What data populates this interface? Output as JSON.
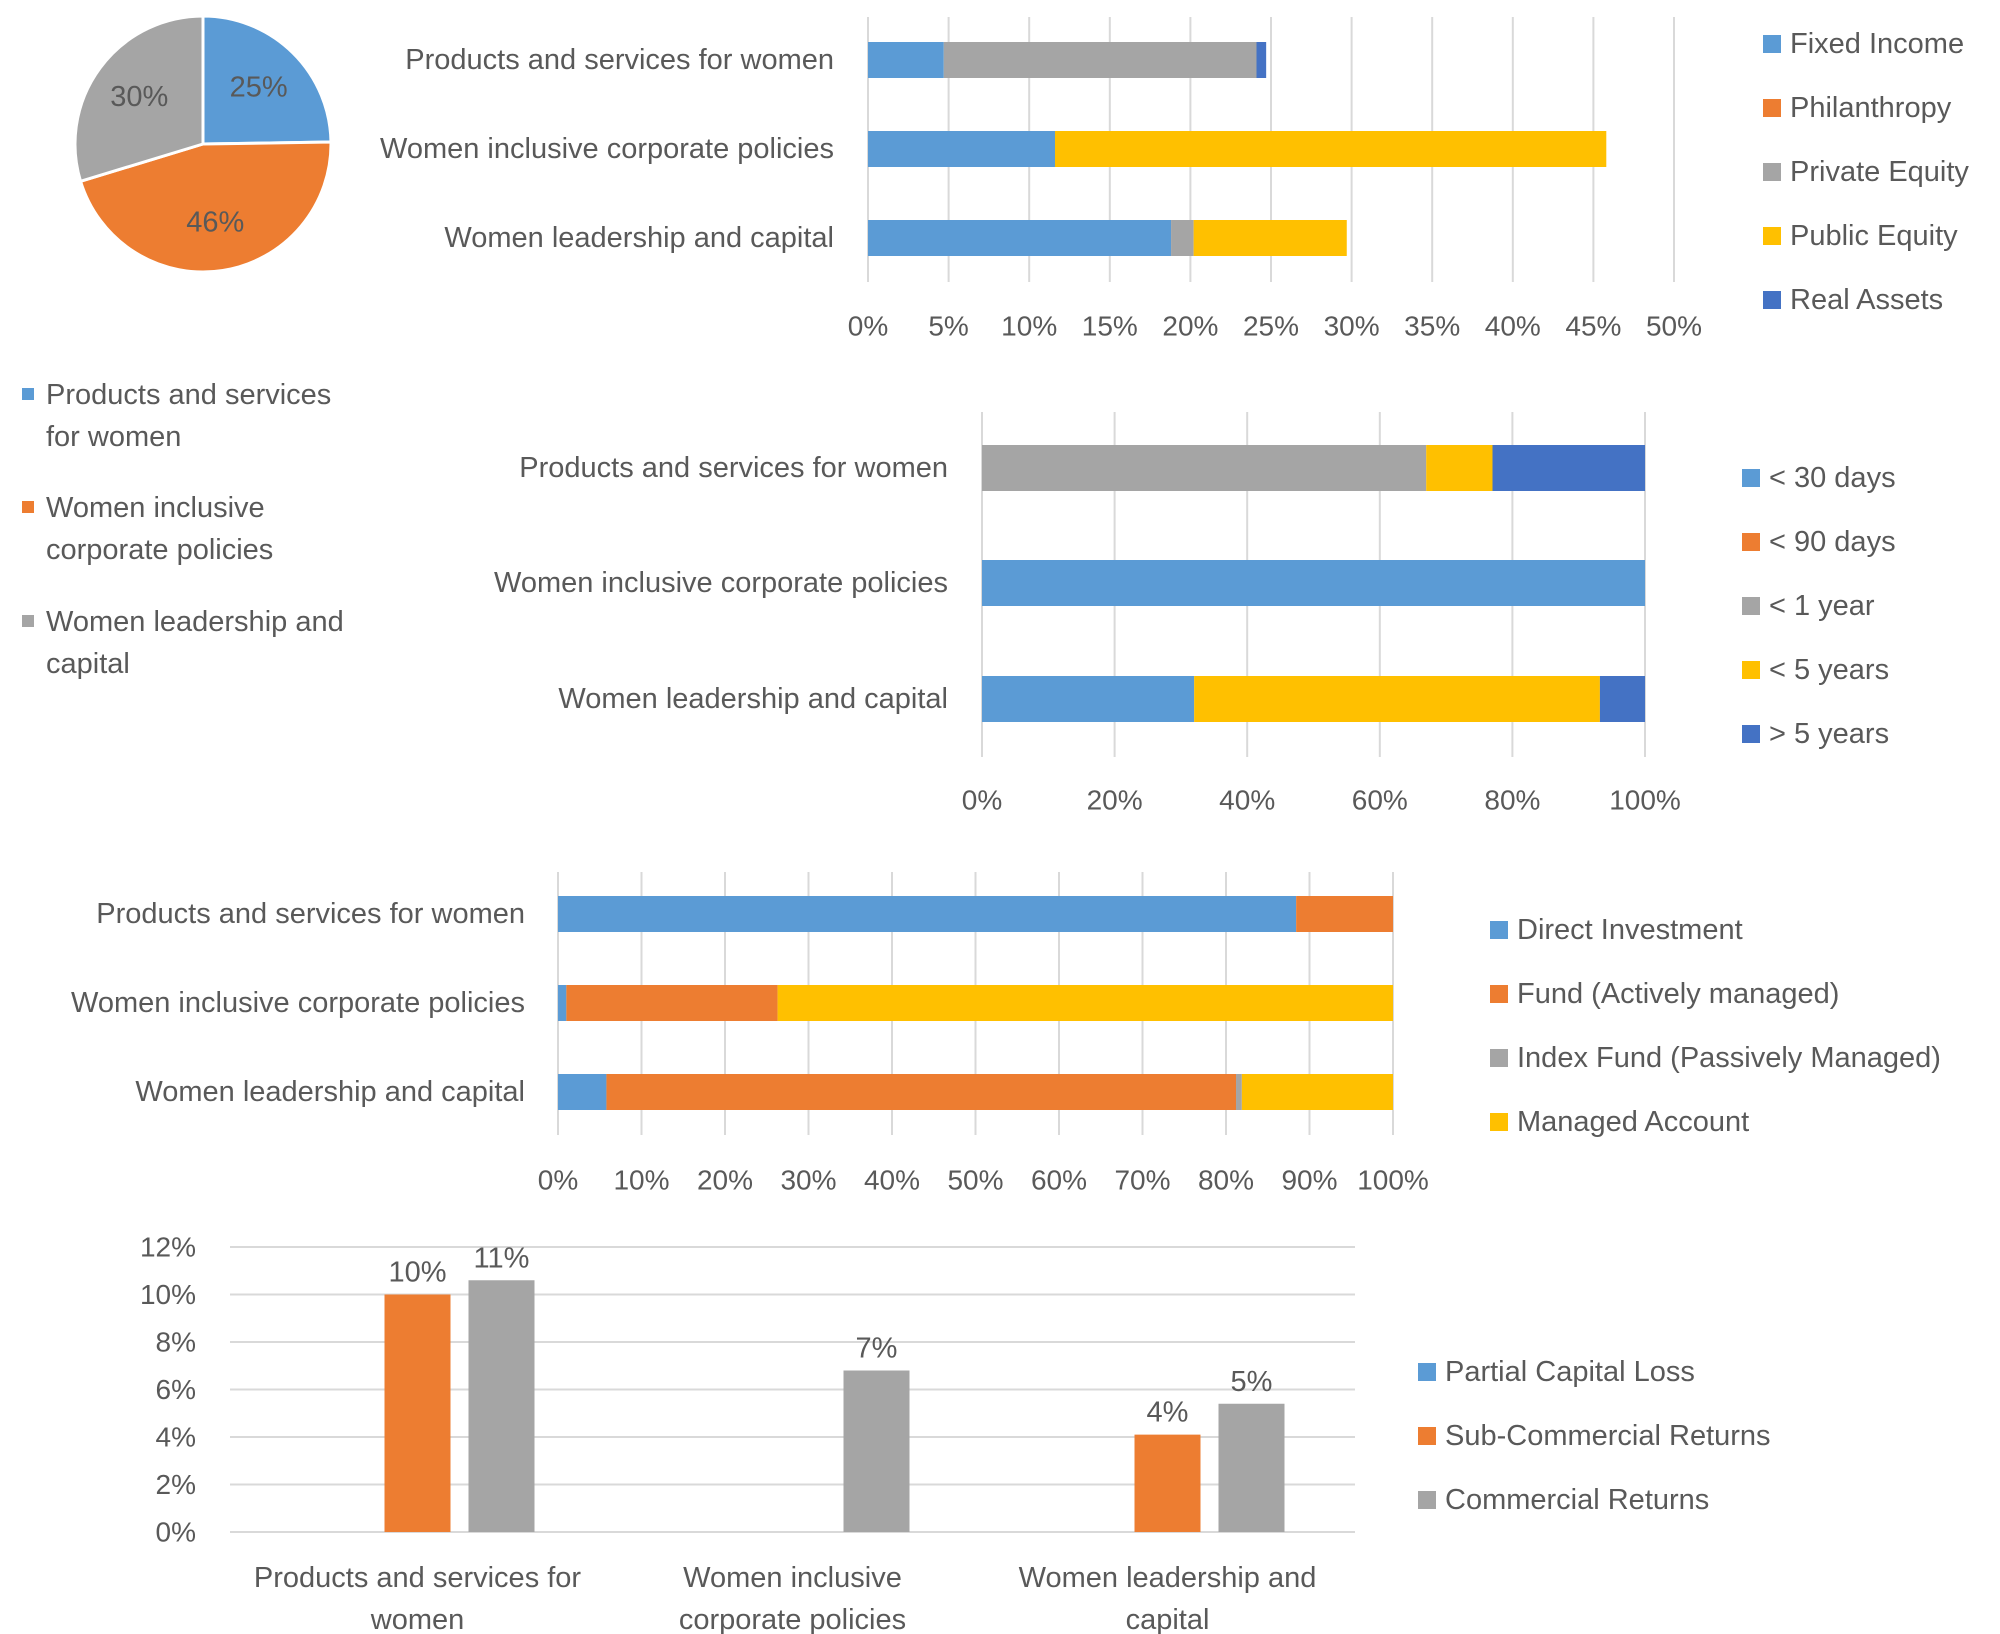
{
  "chart_data": [
    {
      "id": "allocation-pie",
      "type": "pie",
      "title": "",
      "slices": [
        {
          "label": "Products and services for women",
          "value": 25,
          "display": "25%",
          "color": "#5b9bd5"
        },
        {
          "label": "Women inclusive corporate policies",
          "value": 46,
          "display": "46%",
          "color": "#ed7d31"
        },
        {
          "label": "Women leadership and capital",
          "value": 30,
          "display": "30%",
          "color": "#a5a5a5"
        }
      ],
      "legend": [
        "Products and services for women",
        "Women inclusive corporate policies",
        "Women leadership and capital"
      ],
      "legend_position": "bottom-left"
    },
    {
      "id": "asset-class",
      "type": "bar",
      "orientation": "horizontal",
      "stacked": true,
      "categories": [
        "Products and services for women",
        "Women inclusive corporate policies",
        "Women leadership and capital"
      ],
      "series": [
        {
          "name": "Fixed Income",
          "color": "#5b9bd5",
          "values": [
            4.7,
            11.6,
            18.8
          ]
        },
        {
          "name": "Philanthropy",
          "color": "#ed7d31",
          "values": [
            0,
            0,
            0
          ]
        },
        {
          "name": "Private Equity",
          "color": "#a5a5a5",
          "values": [
            19.4,
            0,
            1.4
          ]
        },
        {
          "name": "Public Equity",
          "color": "#ffc000",
          "values": [
            0,
            34.2,
            9.5
          ]
        },
        {
          "name": "Real Assets",
          "color": "#4472c4",
          "values": [
            0.6,
            0,
            0
          ]
        }
      ],
      "xlim": [
        0,
        50
      ],
      "ticks": [
        "0%",
        "5%",
        "10%",
        "15%",
        "20%",
        "25%",
        "30%",
        "35%",
        "40%",
        "45%",
        "50%"
      ],
      "legend_position": "right"
    },
    {
      "id": "time-horizon",
      "type": "bar",
      "orientation": "horizontal",
      "stacked": true,
      "percent": true,
      "categories": [
        "Products and services for women",
        "Women inclusive corporate policies",
        "Women leadership and capital"
      ],
      "series": [
        {
          "name": "< 30 days",
          "color": "#5b9bd5",
          "values": [
            0,
            100,
            32
          ]
        },
        {
          "name": "< 90 days",
          "color": "#ed7d31",
          "values": [
            0,
            0,
            0
          ]
        },
        {
          "name": "< 1 year",
          "color": "#a5a5a5",
          "values": [
            67,
            0,
            0
          ]
        },
        {
          "name": "< 5 years",
          "color": "#ffc000",
          "values": [
            10,
            0,
            61.2
          ]
        },
        {
          "name": "> 5 years",
          "color": "#4472c4",
          "values": [
            23,
            0,
            6.8
          ]
        }
      ],
      "xlim": [
        0,
        100
      ],
      "ticks": [
        "0%",
        "20%",
        "40%",
        "60%",
        "80%",
        "100%"
      ],
      "legend_position": "right"
    },
    {
      "id": "vehicle",
      "type": "bar",
      "orientation": "horizontal",
      "stacked": true,
      "percent": true,
      "categories": [
        "Products and services for women",
        "Women inclusive corporate policies",
        "Women leadership and capital"
      ],
      "series": [
        {
          "name": "Direct Investment",
          "color": "#5b9bd5",
          "values": [
            88.4,
            1.0,
            5.8
          ]
        },
        {
          "name": "Fund (Actively managed)",
          "color": "#ed7d31",
          "values": [
            11.6,
            25.3,
            75.4
          ]
        },
        {
          "name": "Index Fund (Passively Managed)",
          "color": "#a5a5a5",
          "values": [
            0,
            0,
            0.7
          ]
        },
        {
          "name": "Managed Account",
          "color": "#ffc000",
          "values": [
            0,
            73.7,
            18.1
          ]
        }
      ],
      "xlim": [
        0,
        100
      ],
      "ticks": [
        "0%",
        "10%",
        "20%",
        "30%",
        "40%",
        "50%",
        "60%",
        "70%",
        "80%",
        "90%",
        "100%"
      ],
      "legend_position": "right"
    },
    {
      "id": "returns",
      "type": "bar",
      "orientation": "vertical",
      "stacked": false,
      "categories": [
        [
          "Products and services for",
          "women"
        ],
        [
          "Women inclusive",
          "corporate policies"
        ],
        [
          "Women leadership and",
          "capital"
        ]
      ],
      "series": [
        {
          "name": "Partial Capital Loss",
          "color": "#5b9bd5",
          "values": [
            null,
            null,
            null
          ],
          "labels": [
            "",
            "",
            ""
          ]
        },
        {
          "name": "Sub-Commercial Returns",
          "color": "#ed7d31",
          "values": [
            10,
            null,
            4.1
          ],
          "labels": [
            "10%",
            "",
            "4%"
          ]
        },
        {
          "name": "Commercial Returns",
          "color": "#a5a5a5",
          "values": [
            10.6,
            6.8,
            5.4
          ],
          "labels": [
            "11%",
            "7%",
            "5%"
          ]
        }
      ],
      "ylim": [
        0,
        12
      ],
      "ticks": [
        "0%",
        "2%",
        "4%",
        "6%",
        "8%",
        "10%",
        "12%"
      ],
      "legend_position": "right"
    }
  ]
}
